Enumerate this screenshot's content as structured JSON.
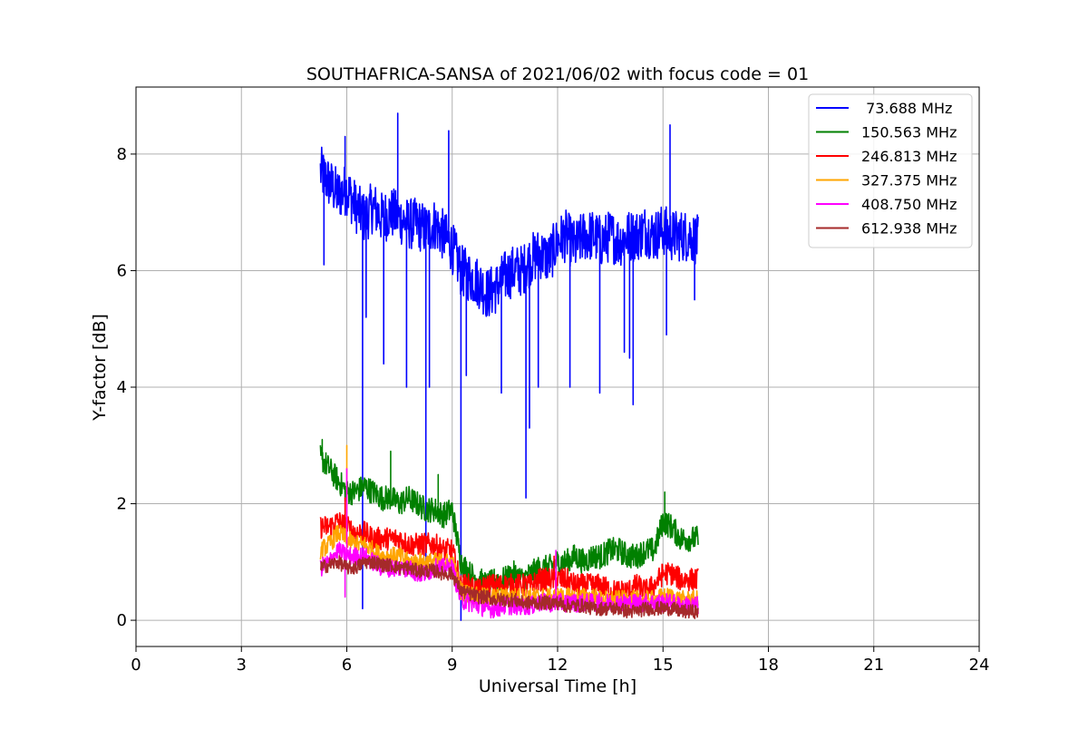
{
  "chart_data": {
    "type": "line",
    "title": "SOUTHAFRICA-SANSA of 2021/06/02 with focus code = 01",
    "xlabel": "Universal Time [h]",
    "ylabel": "Y-factor [dB]",
    "xlim": [
      0,
      24
    ],
    "ylim": [
      -0.45,
      9.15
    ],
    "xticks": [
      0,
      3,
      6,
      9,
      12,
      15,
      18,
      21,
      24
    ],
    "yticks": [
      0,
      2,
      4,
      6,
      8
    ],
    "grid": true,
    "legend_position": "top-right",
    "series": [
      {
        "name": " 73.688 MHz",
        "color": "#0000ff",
        "x": [
          5.25,
          5.5,
          5.75,
          6.0,
          6.25,
          6.5,
          6.75,
          7.0,
          7.25,
          7.5,
          7.75,
          8.0,
          8.25,
          8.5,
          8.75,
          9.0,
          9.25,
          9.5,
          9.75,
          10.0,
          10.25,
          10.5,
          10.75,
          11.0,
          11.25,
          11.5,
          11.75,
          12.0,
          12.25,
          12.5,
          12.75,
          13.0,
          13.25,
          13.5,
          13.75,
          14.0,
          14.25,
          14.5,
          14.75,
          15.0,
          15.25,
          15.5,
          15.75,
          16.0
        ],
        "values": [
          7.7,
          7.5,
          7.3,
          7.4,
          7.1,
          6.9,
          7.1,
          6.9,
          7.0,
          6.9,
          6.8,
          6.8,
          6.7,
          6.8,
          6.6,
          6.4,
          6.0,
          5.9,
          5.8,
          5.6,
          5.7,
          5.9,
          6.0,
          6.0,
          6.2,
          6.3,
          6.2,
          6.5,
          6.6,
          6.4,
          6.6,
          6.6,
          6.5,
          6.6,
          6.5,
          6.6,
          6.6,
          6.7,
          6.6,
          6.7,
          6.6,
          6.6,
          6.6,
          6.5
        ],
        "noise": 0.45,
        "spikes": [
          [
            5.35,
            6.1
          ],
          [
            5.95,
            8.3
          ],
          [
            6.45,
            0.2
          ],
          [
            6.55,
            5.2
          ],
          [
            7.05,
            4.4
          ],
          [
            7.45,
            8.7
          ],
          [
            7.7,
            4.0
          ],
          [
            8.25,
            0.8
          ],
          [
            8.35,
            4.0
          ],
          [
            8.9,
            8.4
          ],
          [
            9.25,
            0.0
          ],
          [
            9.4,
            4.2
          ],
          [
            10.4,
            3.9
          ],
          [
            11.1,
            2.1
          ],
          [
            11.2,
            3.3
          ],
          [
            11.45,
            4.0
          ],
          [
            12.35,
            4.0
          ],
          [
            13.2,
            3.9
          ],
          [
            13.9,
            4.6
          ],
          [
            14.05,
            4.5
          ],
          [
            14.15,
            3.7
          ],
          [
            15.1,
            4.9
          ],
          [
            15.2,
            8.5
          ],
          [
            15.9,
            5.5
          ]
        ]
      },
      {
        "name": "150.563 MHz",
        "color": "#008000",
        "x": [
          5.25,
          5.5,
          5.75,
          6.0,
          6.25,
          6.5,
          6.75,
          7.0,
          7.25,
          7.5,
          7.75,
          8.0,
          8.25,
          8.5,
          8.75,
          9.0,
          9.25,
          9.5,
          9.75,
          10.0,
          10.25,
          10.5,
          10.75,
          11.0,
          11.25,
          11.5,
          11.75,
          12.0,
          12.25,
          12.5,
          12.75,
          13.0,
          13.25,
          13.5,
          13.75,
          14.0,
          14.25,
          14.5,
          14.75,
          15.0,
          15.25,
          15.5,
          15.75,
          16.0
        ],
        "values": [
          2.8,
          2.6,
          2.4,
          2.2,
          2.2,
          2.3,
          2.2,
          2.1,
          2.1,
          2.0,
          2.1,
          2.0,
          1.9,
          1.9,
          1.8,
          1.9,
          1.0,
          0.8,
          0.7,
          0.6,
          0.7,
          0.7,
          0.8,
          0.7,
          0.8,
          0.9,
          0.9,
          1.0,
          1.0,
          1.1,
          1.0,
          1.1,
          1.1,
          1.2,
          1.2,
          1.1,
          1.1,
          1.2,
          1.2,
          1.7,
          1.6,
          1.4,
          1.4,
          1.4
        ],
        "noise": 0.22,
        "spikes": [
          [
            5.3,
            3.1
          ],
          [
            7.25,
            2.9
          ],
          [
            8.6,
            2.5
          ],
          [
            15.05,
            2.2
          ]
        ]
      },
      {
        "name": "246.813 MHz",
        "color": "#ff0000",
        "x": [
          5.25,
          5.5,
          5.75,
          6.0,
          6.25,
          6.5,
          6.75,
          7.0,
          7.25,
          7.5,
          7.75,
          8.0,
          8.25,
          8.5,
          8.75,
          9.0,
          9.25,
          9.5,
          9.75,
          10.0,
          10.25,
          10.5,
          10.75,
          11.0,
          11.25,
          11.5,
          11.75,
          12.0,
          12.25,
          12.5,
          12.75,
          13.0,
          13.25,
          13.5,
          13.75,
          14.0,
          14.25,
          14.5,
          14.75,
          15.0,
          15.25,
          15.5,
          15.75,
          16.0
        ],
        "values": [
          1.6,
          1.6,
          1.7,
          1.6,
          1.5,
          1.5,
          1.4,
          1.4,
          1.4,
          1.4,
          1.3,
          1.3,
          1.3,
          1.3,
          1.2,
          1.2,
          0.6,
          0.6,
          0.5,
          0.6,
          0.6,
          0.6,
          0.6,
          0.6,
          0.6,
          0.7,
          0.7,
          0.7,
          0.7,
          0.6,
          0.6,
          0.6,
          0.6,
          0.5,
          0.5,
          0.5,
          0.6,
          0.5,
          0.6,
          0.8,
          0.8,
          0.7,
          0.7,
          0.7
        ],
        "noise": 0.2,
        "spikes": [
          [
            5.95,
            2.1
          ],
          [
            11.9,
            1.1
          ]
        ]
      },
      {
        "name": "327.375 MHz",
        "color": "#ffa500",
        "x": [
          5.25,
          5.5,
          5.75,
          6.0,
          6.25,
          6.5,
          6.75,
          7.0,
          7.25,
          7.5,
          7.75,
          8.0,
          8.25,
          8.5,
          8.75,
          9.0,
          9.25,
          9.5,
          9.75,
          10.0,
          10.25,
          10.5,
          10.75,
          11.0,
          11.25,
          11.5,
          11.75,
          12.0,
          12.25,
          12.5,
          12.75,
          13.0,
          13.25,
          13.5,
          13.75,
          14.0,
          14.25,
          14.5,
          14.75,
          15.0,
          15.25,
          15.5,
          15.75,
          16.0
        ],
        "values": [
          1.2,
          1.3,
          1.5,
          1.4,
          1.3,
          1.3,
          1.2,
          1.1,
          1.1,
          1.1,
          1.0,
          1.0,
          1.0,
          1.0,
          1.0,
          1.0,
          0.5,
          0.45,
          0.4,
          0.4,
          0.4,
          0.4,
          0.4,
          0.4,
          0.4,
          0.4,
          0.4,
          0.4,
          0.4,
          0.4,
          0.4,
          0.4,
          0.35,
          0.35,
          0.35,
          0.35,
          0.35,
          0.35,
          0.35,
          0.4,
          0.4,
          0.35,
          0.35,
          0.35
        ],
        "noise": 0.16,
        "spikes": [
          [
            6.0,
            3.0
          ]
        ]
      },
      {
        "name": "408.750 MHz",
        "color": "#ff00ff",
        "x": [
          5.25,
          5.5,
          5.75,
          6.0,
          6.25,
          6.5,
          6.75,
          7.0,
          7.25,
          7.5,
          7.75,
          8.0,
          8.25,
          8.5,
          8.75,
          9.0,
          9.25,
          9.5,
          9.75,
          10.0,
          10.25,
          10.5,
          10.75,
          11.0,
          11.25,
          11.5,
          11.75,
          12.0,
          12.25,
          12.5,
          12.75,
          13.0,
          13.25,
          13.5,
          13.75,
          14.0,
          14.25,
          14.5,
          14.75,
          15.0,
          15.25,
          15.5,
          15.75,
          16.0
        ],
        "values": [
          0.9,
          1.0,
          1.2,
          1.1,
          1.1,
          1.1,
          1.0,
          0.9,
          0.9,
          0.9,
          0.9,
          0.8,
          0.8,
          0.9,
          0.9,
          0.9,
          0.35,
          0.3,
          0.25,
          0.2,
          0.2,
          0.25,
          0.25,
          0.25,
          0.25,
          0.3,
          0.3,
          0.3,
          0.3,
          0.3,
          0.3,
          0.3,
          0.3,
          0.3,
          0.3,
          0.3,
          0.3,
          0.3,
          0.3,
          0.3,
          0.3,
          0.25,
          0.25,
          0.25
        ],
        "noise": 0.16,
        "spikes": [
          [
            6.0,
            2.6
          ],
          [
            5.95,
            0.4
          ],
          [
            11.95,
            1.2
          ]
        ]
      },
      {
        "name": "612.938 MHz",
        "color": "#a52a2a",
        "x": [
          5.25,
          5.5,
          5.75,
          6.0,
          6.25,
          6.5,
          6.75,
          7.0,
          7.25,
          7.5,
          7.75,
          8.0,
          8.25,
          8.5,
          8.75,
          9.0,
          9.25,
          9.5,
          9.75,
          10.0,
          10.25,
          10.5,
          10.75,
          11.0,
          11.25,
          11.5,
          11.75,
          12.0,
          12.25,
          12.5,
          12.75,
          13.0,
          13.25,
          13.5,
          13.75,
          14.0,
          14.25,
          14.5,
          14.75,
          15.0,
          15.25,
          15.5,
          15.75,
          16.0
        ],
        "values": [
          0.9,
          0.95,
          1.0,
          0.9,
          0.9,
          1.0,
          1.0,
          0.95,
          0.95,
          0.9,
          0.9,
          0.85,
          0.85,
          0.85,
          0.8,
          0.8,
          0.5,
          0.45,
          0.4,
          0.4,
          0.35,
          0.35,
          0.35,
          0.3,
          0.3,
          0.3,
          0.3,
          0.3,
          0.25,
          0.25,
          0.25,
          0.2,
          0.2,
          0.2,
          0.2,
          0.15,
          0.15,
          0.2,
          0.2,
          0.2,
          0.2,
          0.15,
          0.15,
          0.15
        ],
        "noise": 0.12,
        "spikes": []
      }
    ]
  }
}
